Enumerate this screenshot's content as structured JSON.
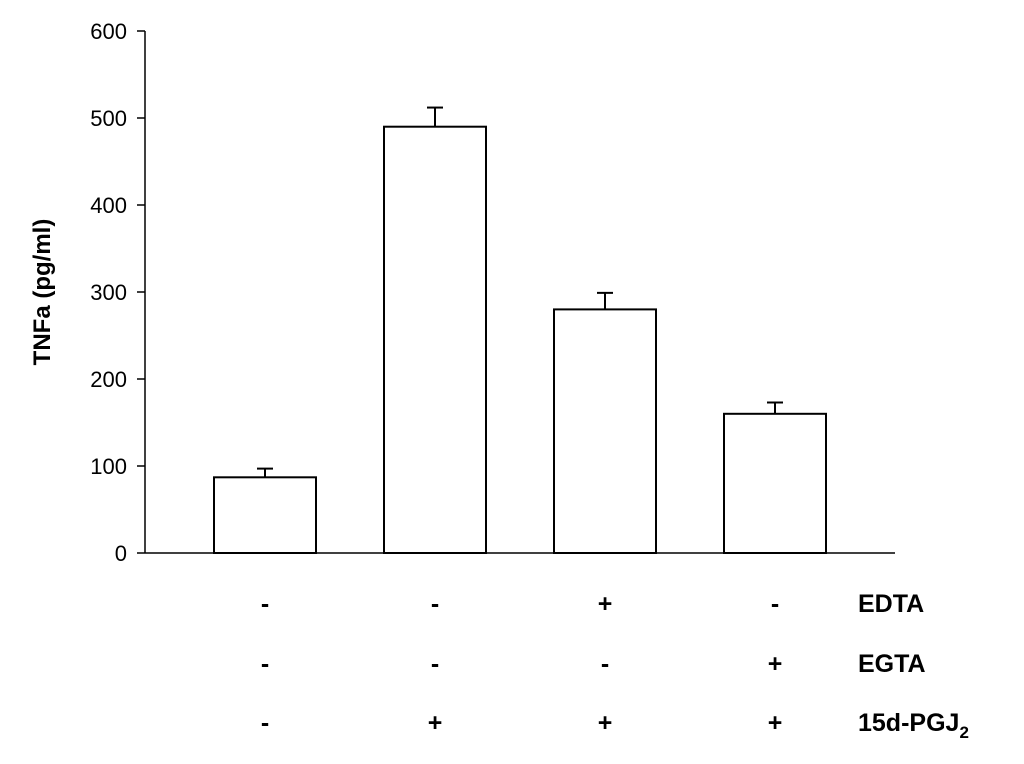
{
  "chart_data": {
    "type": "bar",
    "ylabel": "TNFa (pg/ml)",
    "ylim": [
      0,
      600
    ],
    "yticks": [
      0,
      100,
      200,
      300,
      400,
      500,
      600
    ],
    "bars": [
      {
        "value": 87,
        "error": 10
      },
      {
        "value": 490,
        "error": 22
      },
      {
        "value": 280,
        "error": 19
      },
      {
        "value": 160,
        "error": 13
      }
    ],
    "conditions": [
      {
        "label": "EDTA",
        "values": [
          "-",
          "-",
          "+",
          "-"
        ]
      },
      {
        "label": "EGTA",
        "values": [
          "-",
          "-",
          "-",
          "+"
        ]
      },
      {
        "label": "15d-PGJ",
        "subscript": "2",
        "values": [
          "-",
          "+",
          "+",
          "+"
        ]
      }
    ],
    "grid": false,
    "bar_fill": "#ffffff",
    "bar_stroke": "#000000"
  }
}
